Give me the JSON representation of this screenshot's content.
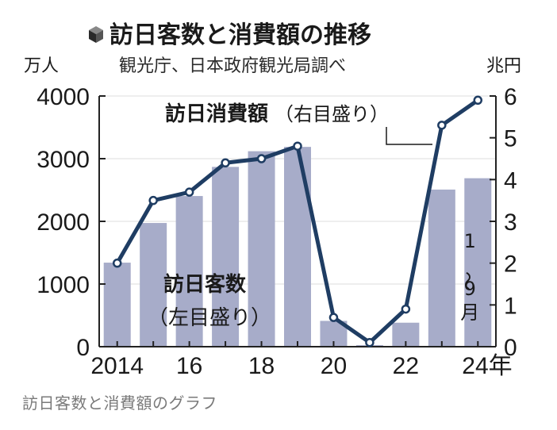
{
  "chart_data": {
    "type": "bar+line",
    "title": "訪日客数と消費額の推移",
    "source": "観光庁、日本政府観光局調べ",
    "left_axis": {
      "unit": "万人",
      "range": [
        0,
        4000
      ],
      "ticks": [
        "0",
        "1000",
        "2000",
        "3000",
        "4000"
      ]
    },
    "right_axis": {
      "unit": "兆円",
      "range": [
        0,
        6
      ],
      "ticks": [
        "0",
        "1",
        "2",
        "3",
        "4",
        "5",
        "6"
      ]
    },
    "x_tick_labels": [
      "2014",
      "16",
      "18",
      "20",
      "22",
      "24年"
    ],
    "categories": [
      "2014",
      "2015",
      "2016",
      "2017",
      "2018",
      "2019",
      "2020",
      "2021",
      "2022",
      "2023",
      "2024"
    ],
    "series": [
      {
        "name": "訪日客数",
        "axis_note": "（左目盛り）",
        "type": "bar",
        "values": [
          1341,
          1974,
          2404,
          2869,
          3119,
          3188,
          412,
          25,
          383,
          2507,
          2688
        ]
      },
      {
        "name": "訪日消費額",
        "axis_note": "（右目盛り）",
        "type": "line",
        "values": [
          2.0,
          3.5,
          3.7,
          4.4,
          4.5,
          4.8,
          0.7,
          0.1,
          0.9,
          5.3,
          5.9
        ]
      }
    ],
    "annotation_last_bar": "1〜9月",
    "colors": {
      "bar": "#a7acc9",
      "line": "#1f3d63",
      "marker_fill": "#ffffff",
      "axis": "#222222",
      "grid": "#dcdcdc"
    },
    "title_icon": "cube-icon"
  },
  "caption": "訪日客数と消費額のグラフ"
}
